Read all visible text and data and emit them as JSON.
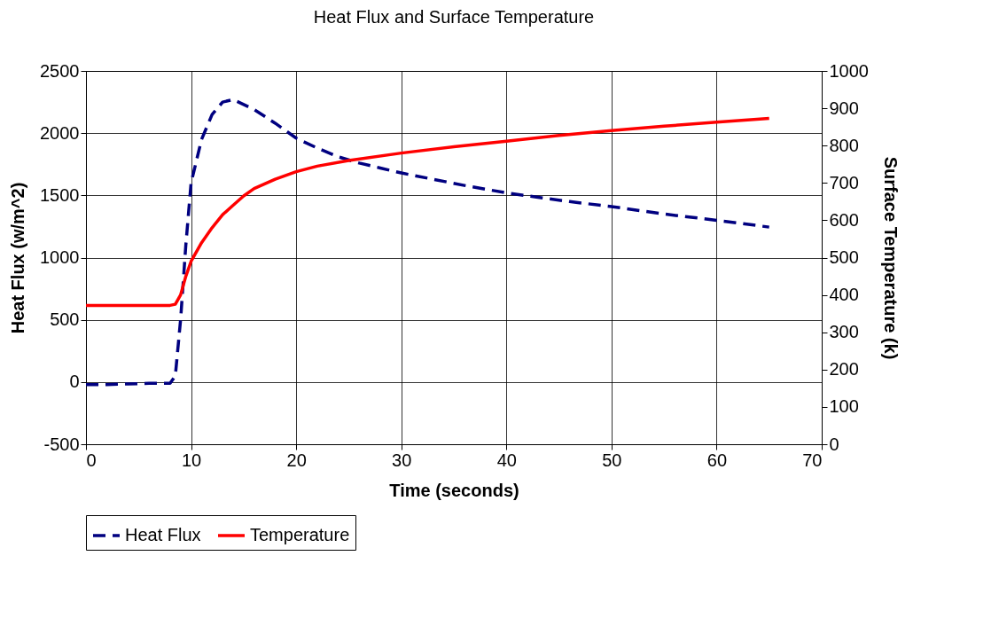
{
  "chart_data": {
    "type": "line",
    "title": "Heat Flux and Surface Temperature",
    "xlabel": "Time (seconds)",
    "ylabel": "Heat Flux (w/m^2)",
    "y2label": "Surface Temperature (k)",
    "xlim": [
      0,
      70
    ],
    "xticks": [
      0,
      10,
      20,
      30,
      40,
      50,
      60,
      70
    ],
    "ylim": [
      -500,
      2500
    ],
    "yticks": [
      -500,
      0,
      500,
      1000,
      1500,
      2000,
      2500
    ],
    "y2lim": [
      0,
      1000
    ],
    "y2ticks": [
      0,
      100,
      200,
      300,
      400,
      500,
      600,
      700,
      800,
      900,
      1000
    ],
    "grid": true,
    "legend": "bottom",
    "marker": "none",
    "series": [
      {
        "name": "Heat Flux",
        "color": "#000080",
        "line_style": "dashed",
        "x": [
          0,
          2,
          4,
          6,
          8,
          8.5,
          9,
          9.5,
          10,
          11,
          12,
          13,
          14,
          15,
          16,
          18,
          20,
          22,
          24,
          26,
          28,
          30,
          33,
          36,
          40,
          43,
          46,
          50,
          55,
          60,
          65
        ],
        "values": [
          -20,
          -20,
          -15,
          -10,
          -10,
          50,
          500,
          1100,
          1600,
          1950,
          2150,
          2250,
          2270,
          2230,
          2190,
          2080,
          1960,
          1880,
          1810,
          1760,
          1720,
          1680,
          1630,
          1580,
          1520,
          1485,
          1450,
          1410,
          1350,
          1300,
          1245
        ]
      },
      {
        "name": "Temperature",
        "color": "#ff0000",
        "line_style": "solid",
        "axis": "y2",
        "x": [
          0,
          2,
          4,
          6,
          8,
          8.5,
          9,
          9.5,
          10,
          11,
          12,
          13,
          14,
          15,
          16,
          18,
          20,
          22,
          25,
          30,
          35,
          40,
          45,
          50,
          55,
          60,
          65
        ],
        "values": [
          372,
          372,
          372,
          372,
          372,
          375,
          400,
          450,
          490,
          540,
          580,
          615,
          640,
          665,
          685,
          710,
          730,
          745,
          760,
          780,
          797,
          812,
          827,
          840,
          852,
          863,
          873
        ]
      }
    ]
  }
}
